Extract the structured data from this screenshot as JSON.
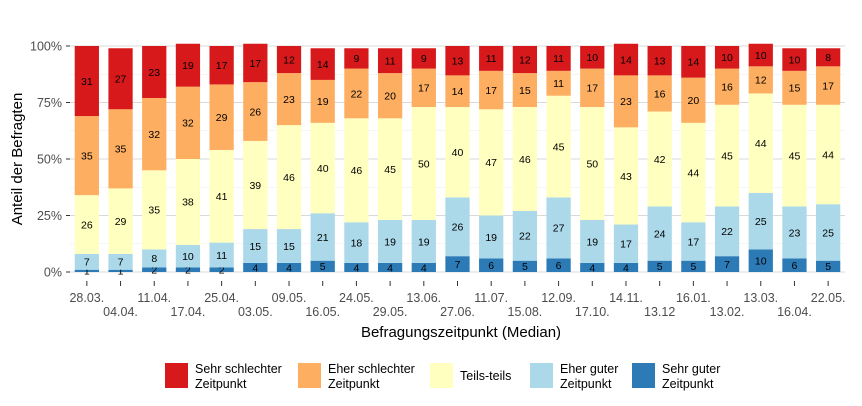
{
  "chart_data": {
    "type": "bar",
    "stacked": true,
    "xlabel": "Befragungszeitpunkt (Median)",
    "ylabel": "Anteil der Befragten",
    "ylim": [
      0,
      100
    ],
    "yticks": [
      "0%",
      "25%",
      "50%",
      "75%",
      "100%"
    ],
    "categories": [
      "28.03.",
      "04.04.",
      "11.04.",
      "17.04.",
      "25.04.",
      "03.05.",
      "09.05.",
      "16.05.",
      "24.05.",
      "29.05.",
      "13.06.",
      "27.06.",
      "11.07.",
      "15.08.",
      "12.09.",
      "17.10.",
      "14.11.",
      "13.12",
      "16.01.",
      "13.02.",
      "13.03.",
      "16.04.",
      "22.05."
    ],
    "series": [
      {
        "name": "Sehr guter Zeitpunkt",
        "color": "#2c7bb6",
        "values": [
          1,
          1,
          2,
          2,
          2,
          4,
          4,
          5,
          4,
          4,
          4,
          7,
          6,
          5,
          6,
          4,
          4,
          5,
          5,
          7,
          10,
          6,
          5
        ]
      },
      {
        "name": "Eher guter Zeitpunkt",
        "color": "#abd9e9",
        "values": [
          7,
          7,
          8,
          10,
          11,
          15,
          15,
          21,
          18,
          19,
          19,
          26,
          19,
          22,
          27,
          19,
          17,
          24,
          17,
          22,
          25,
          23,
          25
        ]
      },
      {
        "name": "Teils-teils",
        "color": "#ffffbf",
        "values": [
          26,
          29,
          35,
          38,
          41,
          39,
          46,
          40,
          46,
          45,
          50,
          40,
          47,
          46,
          45,
          50,
          43,
          42,
          44,
          45,
          44,
          45,
          44
        ]
      },
      {
        "name": "Eher schlechter Zeitpunkt",
        "color": "#fdae61",
        "values": [
          35,
          35,
          32,
          32,
          29,
          26,
          23,
          19,
          22,
          20,
          17,
          14,
          17,
          15,
          11,
          17,
          23,
          16,
          20,
          16,
          12,
          15,
          17
        ]
      },
      {
        "name": "Sehr schlechter Zeitpunkt",
        "color": "#d7191c",
        "values": [
          31,
          27,
          23,
          19,
          17,
          17,
          12,
          14,
          9,
          11,
          9,
          13,
          11,
          12,
          11,
          10,
          14,
          13,
          14,
          10,
          10,
          10,
          8
        ]
      }
    ],
    "legend": {
      "position": "bottom",
      "items": [
        {
          "line1": "Sehr schlechter",
          "line2": "Zeitpunkt",
          "color": "#d7191c"
        },
        {
          "line1": "Eher schlechter",
          "line2": "Zeitpunkt",
          "color": "#fdae61"
        },
        {
          "line1": "Teils-teils",
          "line2": "",
          "color": "#ffffbf"
        },
        {
          "line1": "Eher guter",
          "line2": "Zeitpunkt",
          "color": "#abd9e9"
        },
        {
          "line1": "Sehr guter",
          "line2": "Zeitpunkt",
          "color": "#2c7bb6"
        }
      ]
    },
    "grid": true
  }
}
